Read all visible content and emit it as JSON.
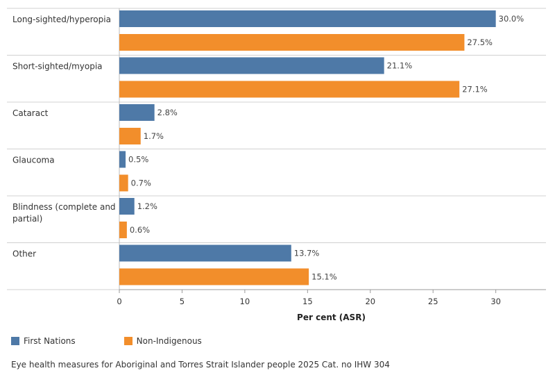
{
  "chart_data": {
    "type": "bar",
    "orientation": "horizontal",
    "categories": [
      [
        "Long-sighted/hyperopia"
      ],
      [
        "Short-sighted/myopia"
      ],
      [
        "Cataract"
      ],
      [
        "Glaucoma"
      ],
      [
        "Blindness (complete and",
        "partial)"
      ],
      [
        "Other"
      ]
    ],
    "series": [
      {
        "name": "First Nations",
        "color": "#4E79A7",
        "values": [
          30.0,
          21.1,
          2.8,
          0.5,
          1.2,
          13.7
        ]
      },
      {
        "name": "Non-Indigenous",
        "color": "#F28E2B",
        "values": [
          27.5,
          27.1,
          1.7,
          0.7,
          0.6,
          15.1
        ]
      }
    ],
    "value_suffix": "%",
    "xlabel": "Per cent (ASR)",
    "xlim": [
      0,
      34
    ],
    "xticks": [
      0,
      5,
      10,
      15,
      20,
      25,
      30
    ],
    "grid": false,
    "legend": "bottom-left"
  },
  "legend": {
    "first_nations": "First Nations",
    "non_indigenous": "Non-Indigenous",
    "first_nations_color": "#4E79A7",
    "non_indigenous_color": "#F28E2B"
  },
  "caption": "Eye health measures for Aboriginal and Torres Strait Islander people 2025 Cat. no IHW 304"
}
